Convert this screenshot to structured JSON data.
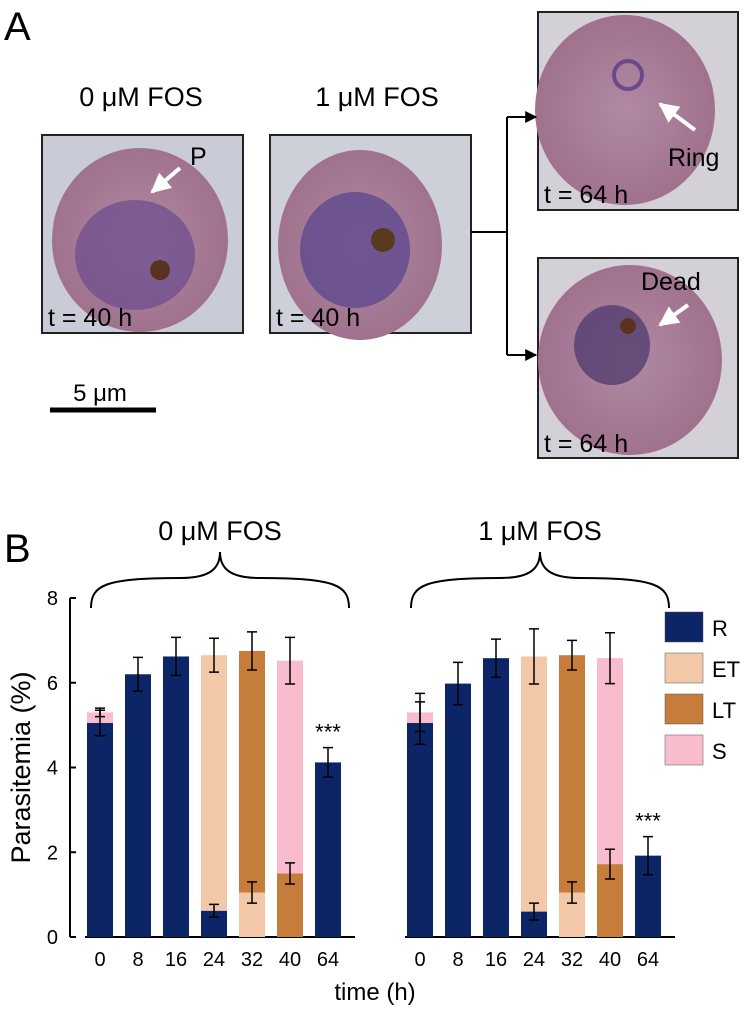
{
  "panel_a": {
    "label": "A",
    "conditions": [
      {
        "title": "0 μM FOS",
        "annotation": "P",
        "time": "t = 40 h"
      },
      {
        "title": "1 μM FOS",
        "time": "t = 40 h"
      }
    ],
    "outcomes": [
      {
        "annotation": "Ring",
        "time": "t = 64 h"
      },
      {
        "annotation": "Dead",
        "time": "t = 64 h"
      }
    ],
    "scale_bar": "5 μm"
  },
  "chart_data": {
    "type": "bar",
    "label": "B",
    "stacked": true,
    "ylabel": "Parasitemia (%)",
    "xlabel": "time (h)",
    "ylim": [
      0,
      8
    ],
    "yticks": [
      0,
      2,
      4,
      6,
      8
    ],
    "legend": "right",
    "series": [
      {
        "name": "R",
        "color": "#0c2566"
      },
      {
        "name": "ET",
        "color": "#f3c8a8"
      },
      {
        "name": "LT",
        "color": "#c67c3b"
      },
      {
        "name": "S",
        "color": "#f9bccd"
      }
    ],
    "groups": [
      {
        "title": "0 μM FOS",
        "categories": [
          "0",
          "8",
          "16",
          "24",
          "32",
          "40",
          "64"
        ],
        "values": [
          [
            5.05,
            6.2,
            6.62,
            0.62,
            null,
            null,
            4.12
          ],
          [
            null,
            null,
            null,
            6.03,
            1.05,
            null,
            null
          ],
          [
            null,
            null,
            null,
            null,
            5.7,
            1.5,
            null
          ],
          [
            0.25,
            null,
            null,
            null,
            null,
            5.02,
            null
          ]
        ],
        "errors": [
          [
            0.3,
            0.4,
            0.45,
            0.15,
            null,
            null,
            0.35
          ],
          [
            null,
            null,
            null,
            0.4,
            0.25,
            null,
            null
          ],
          [
            null,
            null,
            null,
            null,
            0.45,
            0.25,
            null
          ],
          [
            0.1,
            null,
            null,
            null,
            null,
            0.55,
            null
          ]
        ],
        "annotations": [
          null,
          null,
          null,
          null,
          null,
          null,
          "***"
        ]
      },
      {
        "title": "1 μM FOS",
        "categories": [
          "0",
          "8",
          "16",
          "24",
          "32",
          "40",
          "64"
        ],
        "values": [
          [
            5.05,
            5.98,
            6.58,
            0.6,
            null,
            null,
            1.92
          ],
          [
            null,
            null,
            null,
            6.02,
            1.05,
            null,
            null
          ],
          [
            null,
            null,
            null,
            null,
            5.6,
            1.72,
            null
          ],
          [
            0.25,
            null,
            null,
            null,
            null,
            4.86,
            null
          ]
        ],
        "errors": [
          [
            0.5,
            0.5,
            0.45,
            0.2,
            null,
            null,
            0.45
          ],
          [
            null,
            null,
            null,
            0.65,
            0.25,
            null,
            null
          ],
          [
            null,
            null,
            null,
            null,
            0.35,
            0.35,
            null
          ],
          [
            0.45,
            null,
            null,
            null,
            null,
            0.6,
            null
          ]
        ],
        "annotations": [
          null,
          null,
          null,
          null,
          null,
          null,
          "***"
        ]
      }
    ]
  }
}
